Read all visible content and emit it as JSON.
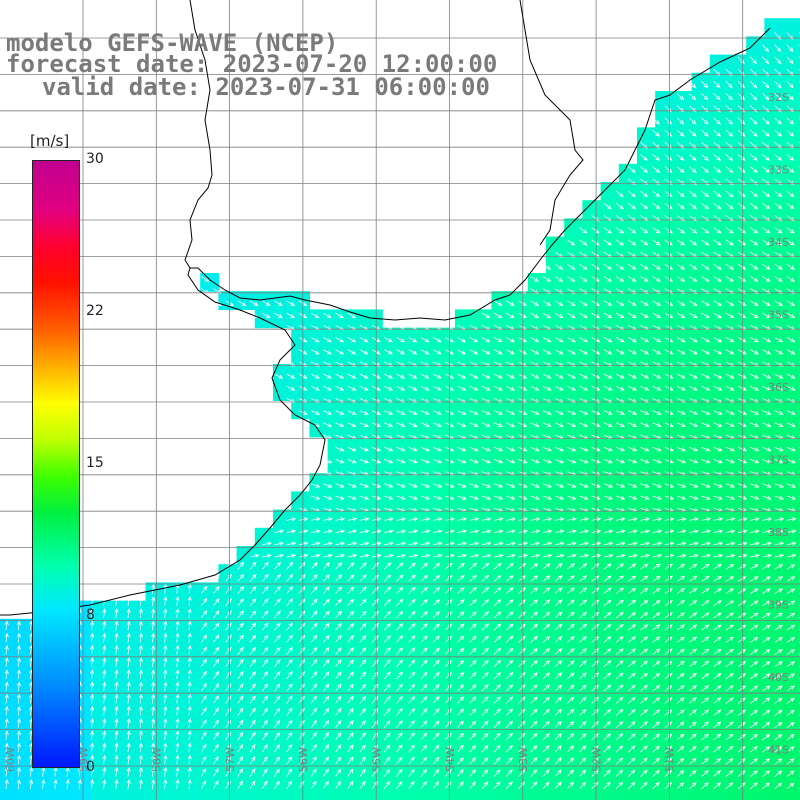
{
  "title": {
    "line1": "modelo GEFS-WAVE (NCEP)",
    "line2": "forecast date: 2023-07-20 12:00:00",
    "line3": "valid date: 2023-07-31 06:00:00"
  },
  "colorbar": {
    "unit": "[m/s]",
    "ticks": [
      "30",
      "22",
      "15",
      "8",
      "0"
    ],
    "colors": [
      "#0018ff",
      "#00e8ff",
      "#00f040",
      "#ffff00",
      "#ff1000",
      "#c00090"
    ]
  },
  "axes": {
    "lat_labels": [
      "32S",
      "33S",
      "34S",
      "35S",
      "36S",
      "37S",
      "38S",
      "39S",
      "40S",
      "41S"
    ],
    "lon_labels": [
      "60W",
      "59W",
      "58W",
      "57W",
      "56W",
      "55W",
      "54W",
      "53W",
      "52W",
      "51W"
    ]
  },
  "colors": {
    "land": "#ffffff",
    "coast": "#000000",
    "grid": "#7f7f7f",
    "title": "#7a7a7a",
    "arrow": "#ffffff"
  }
}
